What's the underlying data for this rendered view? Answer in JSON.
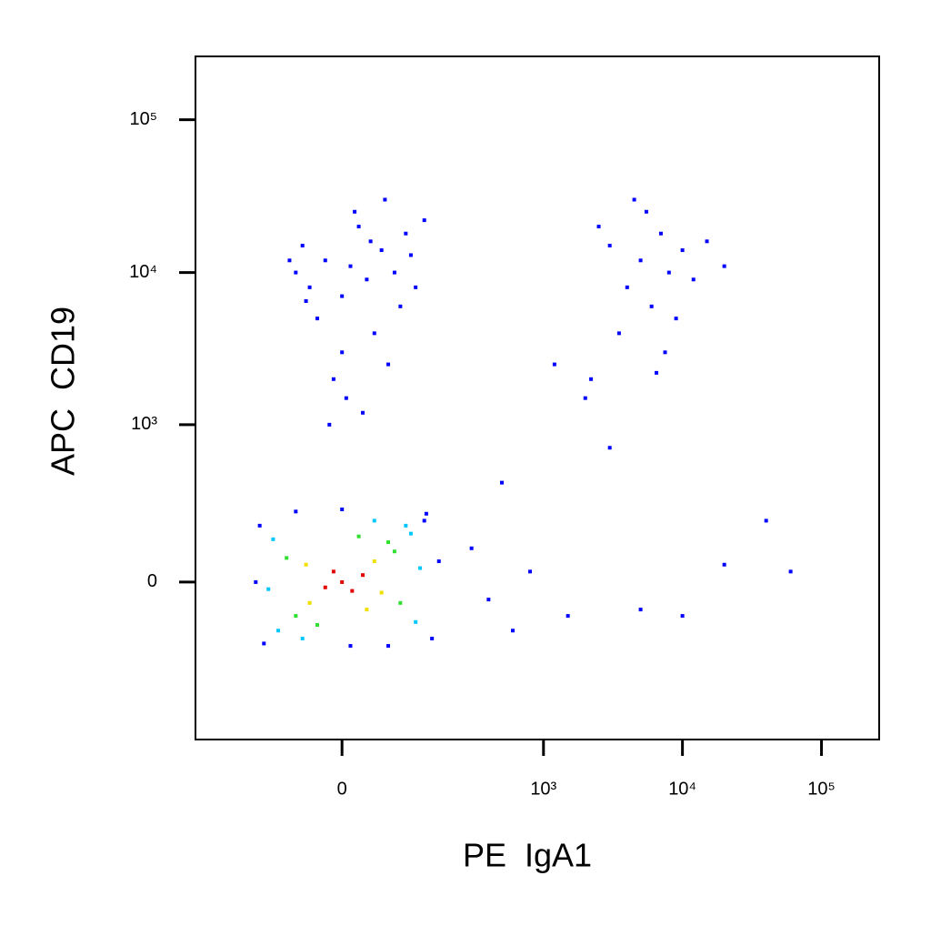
{
  "chart_data": {
    "type": "scatter",
    "x_label": "PE  IgA1",
    "y_label": "APC  CD19",
    "xscale": "biexponential",
    "yscale": "biexponential",
    "xlim": [
      -400,
      260000
    ],
    "ylim": [
      -1000,
      260000
    ],
    "xticks": [
      0,
      {
        "value": 1000,
        "label": "10³"
      },
      {
        "value": 10000,
        "label": "10⁴"
      },
      {
        "value": 100000,
        "label": "10⁵"
      }
    ],
    "yticks": [
      0,
      {
        "value": 1000,
        "label": "10³"
      },
      {
        "value": 10000,
        "label": "10⁴"
      },
      {
        "value": 100000,
        "label": "10⁵"
      }
    ],
    "series": [
      {
        "color": "#0000ff",
        "x": [
          130,
          -120,
          150,
          -130,
          135,
          -60,
          60,
          170,
          -140,
          0,
          10,
          10,
          30,
          -20,
          50,
          -40,
          0,
          70,
          -50,
          20,
          80,
          -30,
          40,
          0,
          60,
          -10,
          100,
          -60,
          15,
          90,
          -45,
          35,
          5,
          25,
          -15,
          110,
          55,
          130,
          -70,
          3000,
          5000,
          7000,
          4000,
          6000,
          8000,
          10000,
          2500,
          12000,
          5500,
          9000,
          3500,
          15000,
          7500,
          20000,
          2200,
          6500,
          4500,
          400,
          800,
          1500,
          300,
          5000,
          20000,
          60000,
          1200,
          2000,
          500,
          3000,
          40000,
          600,
          10000
        ],
        "y": [
          200,
          -200,
          -180,
          180,
          230,
          240,
          -210,
          60,
          0,
          250,
          -210,
          11000,
          9000,
          12000,
          14000,
          8000,
          7000,
          10000,
          15000,
          20000,
          6000,
          5000,
          4000,
          3000,
          2500,
          2000,
          13000,
          10000,
          25000,
          18000,
          6500,
          16000,
          1500,
          1200,
          1000,
          8000,
          30000,
          22000,
          12000,
          15000,
          12000,
          18000,
          8000,
          6000,
          10000,
          14000,
          20000,
          9000,
          25000,
          5000,
          4000,
          16000,
          3000,
          11000,
          2000,
          2200,
          30000,
          -50,
          30,
          -100,
          100,
          -80,
          50,
          30,
          2500,
          1500,
          400,
          700,
          200,
          -150,
          -100
        ]
      },
      {
        "color": "#00c8ff",
        "x": [
          100,
          -90,
          110,
          -100,
          90,
          -50,
          40,
          120,
          -110
        ],
        "y": [
          150,
          -150,
          -120,
          130,
          180,
          -180,
          200,
          40,
          -20
        ]
      },
      {
        "color": "#30e030",
        "x": [
          70,
          -60,
          80,
          -75,
          60,
          -30,
          20
        ],
        "y": [
          90,
          -100,
          -60,
          70,
          120,
          -130,
          140
        ]
      },
      {
        "color": "#f0e000",
        "x": [
          40,
          -40,
          50,
          -45,
          30
        ],
        "y": [
          60,
          -60,
          -30,
          50,
          -80
        ]
      },
      {
        "color": "#e00000",
        "x": [
          0,
          12,
          -10,
          25,
          -20
        ],
        "y": [
          0,
          -25,
          30,
          20,
          -15
        ]
      }
    ]
  }
}
